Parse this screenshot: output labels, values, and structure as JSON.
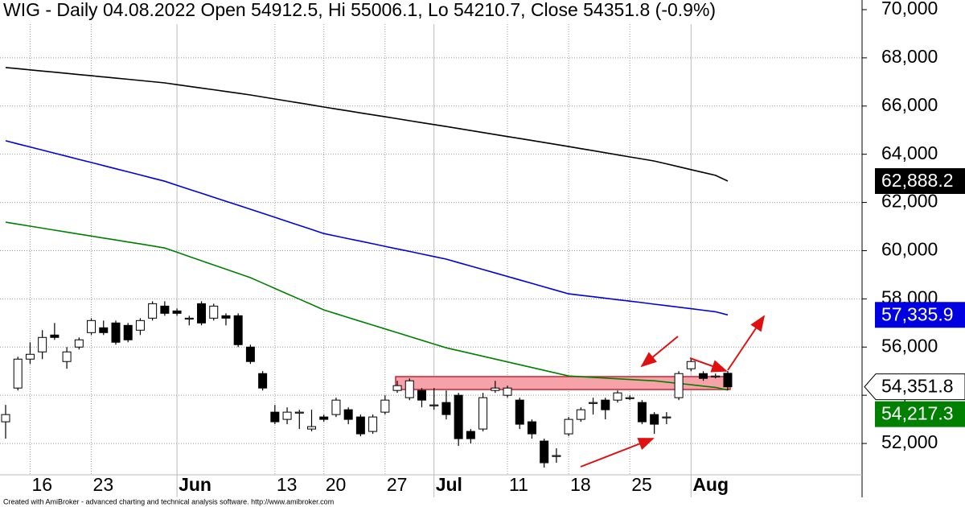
{
  "chart_data": {
    "type": "candlestick",
    "title": "WIG - Daily 04.08.2022 Open 54912.5, Hi 55006.1, Lo 54210.7, Close 54351.8 (-0.9%)",
    "footer": "Created with AmiBroker - advanced charting and technical analysis software. http://www.amibroker.com",
    "categories": [
      null,
      null,
      "16",
      null,
      null,
      null,
      null,
      "23",
      null,
      null,
      null,
      null,
      null,
      null,
      "Jun",
      null,
      null,
      null,
      null,
      null,
      null,
      null,
      "13",
      null,
      null,
      null,
      "20",
      null,
      null,
      null,
      null,
      "27",
      null,
      null,
      null,
      "Jul",
      null,
      null,
      null,
      null,
      null,
      "11",
      null,
      null,
      null,
      null,
      "18",
      null,
      null,
      null,
      null,
      "25",
      null,
      null,
      null,
      null,
      "Aug",
      null,
      null,
      null
    ],
    "open": [
      52900,
      54300,
      55500,
      55800,
      56500,
      55400,
      56000,
      56600,
      56800,
      57000,
      56900,
      56700,
      57200,
      57700,
      57500,
      57200,
      57800,
      57200,
      57300,
      57300,
      56000,
      54900,
      53300,
      53000,
      53300,
      52600,
      53100,
      53200,
      53400,
      53100,
      52500,
      53300,
      54200,
      53900,
      54200,
      53600,
      53700,
      54000,
      52500,
      52600,
      54200,
      54000,
      53800,
      52900,
      52100,
      51500,
      52400,
      53000,
      53700,
      53800,
      53800,
      53900,
      53700,
      53200,
      53100,
      53900,
      55100,
      54900,
      54800,
      54912.5
    ],
    "high": [
      53600,
      55600,
      56200,
      56700,
      57000,
      56000,
      56400,
      57200,
      57100,
      57100,
      57000,
      57200,
      57900,
      57900,
      57600,
      57300,
      57900,
      57800,
      57400,
      57400,
      56100,
      55000,
      53600,
      53500,
      53400,
      53400,
      53200,
      53900,
      53500,
      53200,
      53200,
      54000,
      54600,
      54700,
      54300,
      54300,
      54200,
      54100,
      52600,
      54100,
      54600,
      54400,
      53900,
      53000,
      52200,
      51800,
      53100,
      53500,
      53900,
      53900,
      54200,
      54000,
      53800,
      53300,
      53300,
      55000,
      55500,
      55000,
      54900,
      55006.1
    ],
    "low": [
      52200,
      54200,
      55300,
      55500,
      56300,
      55100,
      55900,
      56500,
      56500,
      56100,
      56200,
      56500,
      57100,
      57300,
      57300,
      56900,
      56900,
      57100,
      56900,
      56000,
      55300,
      54200,
      52800,
      52800,
      52600,
      52500,
      52900,
      53100,
      52800,
      52300,
      52400,
      53200,
      54100,
      53800,
      53500,
      53400,
      53000,
      51900,
      52000,
      52500,
      54100,
      53900,
      52600,
      52200,
      51000,
      51200,
      52300,
      52900,
      53200,
      53000,
      53700,
      53800,
      52800,
      52400,
      52800,
      53800,
      55000,
      54600,
      54700,
      54210.7
    ],
    "close": [
      53200,
      55500,
      55700,
      56400,
      56400,
      55800,
      56300,
      57100,
      56600,
      56200,
      56300,
      57100,
      57800,
      57400,
      57400,
      57200,
      57000,
      57700,
      57200,
      56100,
      55400,
      54300,
      52900,
      53300,
      53300,
      52700,
      53000,
      53800,
      53000,
      52400,
      53100,
      53800,
      54400,
      54600,
      53800,
      53600,
      53200,
      52200,
      52200,
      53900,
      54300,
      54300,
      52800,
      52400,
      51200,
      51500,
      53000,
      53400,
      53700,
      53400,
      54100,
      53900,
      52900,
      52800,
      53100,
      54900,
      55400,
      54700,
      54800,
      54351.8
    ],
    "close_label": "54,351.8",
    "lines": [
      {
        "color": "#000000",
        "end_label": "62,888.2",
        "values": [
          67600,
          67551,
          67502,
          67453,
          67404,
          67355,
          67306,
          67257,
          67208,
          67159,
          67110,
          67061,
          67012,
          66960,
          66889,
          66818,
          66747,
          66676,
          66605,
          66534,
          66460,
          66377,
          66294,
          66211,
          66128,
          66045,
          65960,
          65879,
          65798,
          65717,
          65636,
          65555,
          65474,
          65393,
          65312,
          65231,
          65150,
          65067,
          64984,
          64901,
          64818,
          64735,
          64652,
          64569,
          64486,
          64403,
          64320,
          64234,
          64148,
          64062,
          63976,
          63890,
          63804,
          63720,
          63601,
          63482,
          63363,
          63244,
          63125,
          62888.2
        ]
      },
      {
        "color": "#0000e0",
        "end_label": "57,335.9",
        "values": [
          64560,
          64431,
          64302,
          64173,
          64044,
          63915,
          63786,
          63657,
          63528,
          63399,
          63270,
          63141,
          63012,
          62880,
          62714,
          62548,
          62382,
          62216,
          62050,
          61884,
          61720,
          61552,
          61384,
          61216,
          61048,
          60880,
          60710,
          60604,
          60498,
          60392,
          60286,
          60180,
          60074,
          59968,
          59862,
          59756,
          59650,
          59506,
          59362,
          59218,
          59074,
          58930,
          58786,
          58642,
          58498,
          58354,
          58210,
          58149,
          58088,
          58027,
          57966,
          57905,
          57844,
          57780,
          57717,
          57654,
          57591,
          57528,
          57465,
          57335.9
        ]
      },
      {
        "color": "#008000",
        "end_label": "54,217.3",
        "values": [
          61180,
          61098,
          61016,
          60934,
          60852,
          60770,
          60688,
          60606,
          60524,
          60442,
          60360,
          60278,
          60196,
          60110,
          59934,
          59758,
          59582,
          59406,
          59230,
          59054,
          58880,
          58657,
          58434,
          58211,
          57988,
          57765,
          57540,
          57383,
          57226,
          57069,
          56912,
          56755,
          56598,
          56441,
          56284,
          56127,
          55970,
          55853,
          55736,
          55619,
          55502,
          55385,
          55268,
          55151,
          55034,
          54917,
          54800,
          54771,
          54742,
          54713,
          54684,
          54655,
          54626,
          54600,
          54545,
          54490,
          54435,
          54380,
          54325,
          54217.3
        ]
      }
    ],
    "ylim": [
      50700,
      70400
    ],
    "yticks": [
      {
        "value": 52000,
        "label": "52,000"
      },
      {
        "value": 54000,
        "label": "54,000"
      },
      {
        "value": 56000,
        "label": "56,000"
      },
      {
        "value": 58000,
        "label": "58,000"
      },
      {
        "value": 60000,
        "label": "60,000"
      },
      {
        "value": 62000,
        "label": "62,000"
      },
      {
        "value": 64000,
        "label": "64,000"
      },
      {
        "value": 66000,
        "label": "66,000"
      },
      {
        "value": 68000,
        "label": "68,000"
      },
      {
        "value": 70000,
        "label": "70,000"
      }
    ],
    "grid": true
  }
}
